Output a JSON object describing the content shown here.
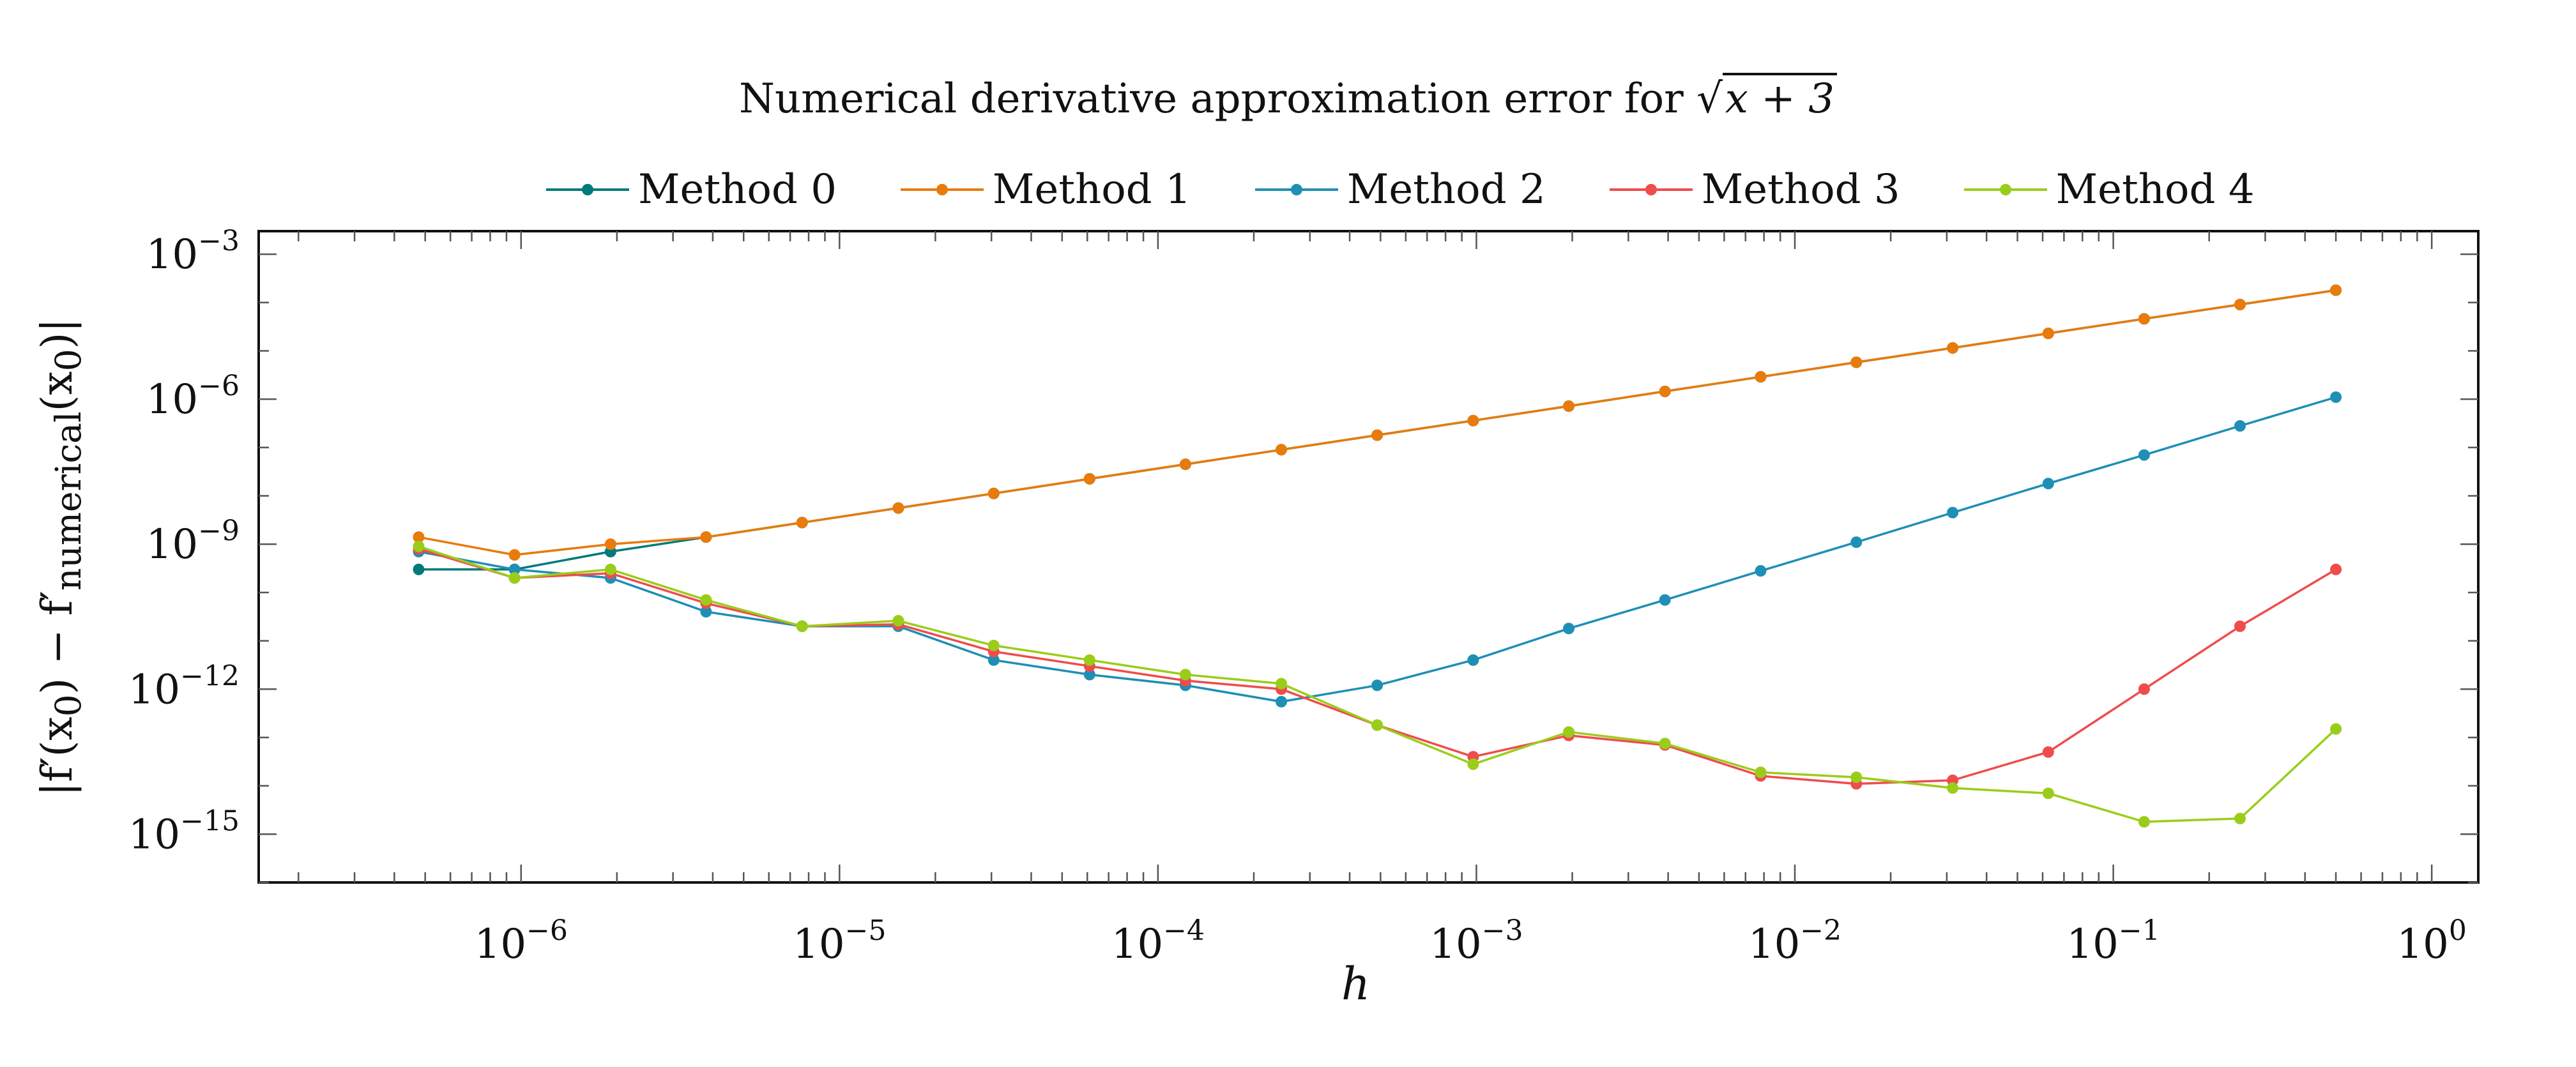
{
  "chart_data": {
    "type": "line",
    "title": "Numerical derivative approximation error for √x + 3",
    "title_prefix": "Numerical derivative approximation error for ",
    "title_radicand": "x + 3",
    "xlabel": "h",
    "ylabel": "|f′(x₀) − f′numerical(x₀)|",
    "ylabel_main": "|f′(x",
    "ylabel_parts": {
      "p1": "|f′(x",
      "sub0": "0",
      "p2": ") − f′",
      "subnum": "numerical",
      "p3": "(x",
      "sub1": "0",
      "p4": ")|"
    },
    "xscale": "log",
    "yscale": "log",
    "xlim": [
      1.5e-07,
      1.4
    ],
    "ylim": [
      1e-16,
      0.003
    ],
    "xticks": [
      1e-06,
      1e-05,
      0.0001,
      0.001,
      0.01,
      0.1,
      1
    ],
    "xtick_labels": [
      {
        "base": "10",
        "exp": "−6"
      },
      {
        "base": "10",
        "exp": "−5"
      },
      {
        "base": "10",
        "exp": "−4"
      },
      {
        "base": "10",
        "exp": "−3"
      },
      {
        "base": "10",
        "exp": "−2"
      },
      {
        "base": "10",
        "exp": "−1"
      },
      {
        "base": "10",
        "exp": "0"
      }
    ],
    "yticks": [
      1e-15,
      1e-12,
      1e-09,
      1e-06,
      0.001
    ],
    "ytick_labels": [
      {
        "base": "10",
        "exp": "−15"
      },
      {
        "base": "10",
        "exp": "−12"
      },
      {
        "base": "10",
        "exp": "−9"
      },
      {
        "base": "10",
        "exp": "−6"
      },
      {
        "base": "10",
        "exp": "−3"
      }
    ],
    "grid": false,
    "legend_position": "top",
    "x": [
      4.77e-07,
      9.54e-07,
      1.91e-06,
      3.81e-06,
      7.63e-06,
      1.53e-05,
      3.05e-05,
      6.1e-05,
      0.000122,
      0.000244,
      0.000488,
      0.000977,
      0.00195,
      0.00391,
      0.00781,
      0.0156,
      0.0313,
      0.0625,
      0.125,
      0.25,
      0.5
    ],
    "series": [
      {
        "name": "Method 0",
        "color": "#007a7a",
        "values": [
          3e-10,
          3e-10,
          7e-10,
          1.4e-09,
          2.8e-09,
          5.6e-09,
          1.12e-08,
          2.25e-08,
          4.5e-08,
          9e-08,
          1.8e-07,
          3.6e-07,
          7.2e-07,
          1.45e-06,
          2.9e-06,
          5.8e-06,
          1.15e-05,
          2.3e-05,
          4.6e-05,
          9.1e-05,
          0.00018
        ]
      },
      {
        "name": "Method 1",
        "color": "#e87b0c",
        "values": [
          1.4e-09,
          6e-10,
          1e-09,
          1.4e-09,
          2.8e-09,
          5.6e-09,
          1.12e-08,
          2.25e-08,
          4.5e-08,
          9e-08,
          1.8e-07,
          3.6e-07,
          7.2e-07,
          1.45e-06,
          2.9e-06,
          5.8e-06,
          1.15e-05,
          2.3e-05,
          4.6e-05,
          9.1e-05,
          0.00018
        ]
      },
      {
        "name": "Method 2",
        "color": "#1f8fb5",
        "values": [
          7e-10,
          3e-10,
          2e-10,
          4e-11,
          2e-11,
          2e-11,
          4e-12,
          2e-12,
          1.2e-12,
          5.5e-13,
          1.2e-12,
          4e-12,
          1.8e-11,
          7e-11,
          2.8e-10,
          1.1e-09,
          4.5e-09,
          1.8e-08,
          7e-08,
          2.8e-07,
          1.1e-06
        ]
      },
      {
        "name": "Method 3",
        "color": "#ef4c4c",
        "values": [
          8e-10,
          2e-10,
          2.5e-10,
          6e-11,
          2e-11,
          2.2e-11,
          6e-12,
          3e-12,
          1.5e-12,
          1e-12,
          1.8e-13,
          4e-14,
          1.1e-13,
          7e-14,
          1.6e-14,
          1.1e-14,
          1.3e-14,
          5e-14,
          1e-12,
          2e-11,
          3e-10
        ]
      },
      {
        "name": "Method 4",
        "color": "#9acd1a",
        "values": [
          9e-10,
          2e-10,
          3e-10,
          7e-11,
          2e-11,
          2.6e-11,
          8e-12,
          4e-12,
          2e-12,
          1.3e-12,
          1.8e-13,
          2.8e-14,
          1.3e-13,
          7.5e-14,
          1.9e-14,
          1.5e-14,
          9e-15,
          7e-15,
          1.8e-15,
          2.1e-15,
          1.5e-13
        ]
      }
    ]
  }
}
